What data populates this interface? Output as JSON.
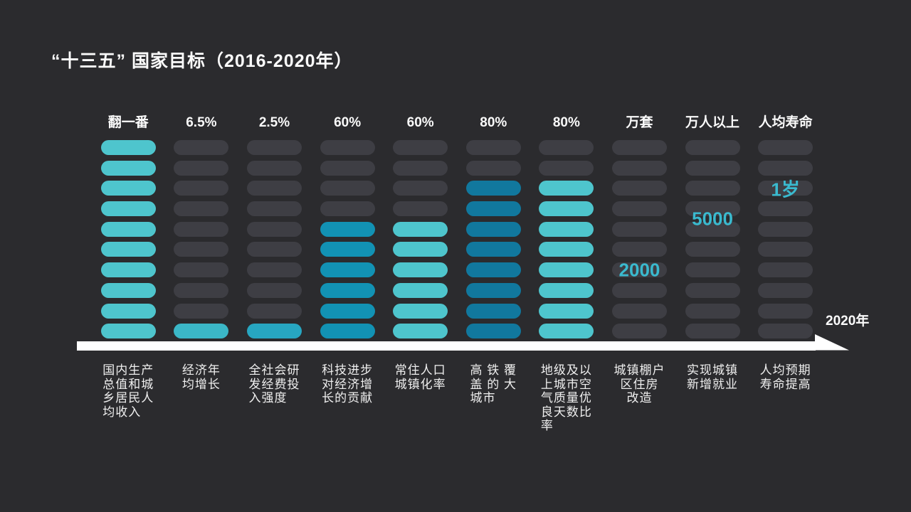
{
  "title": "“十三五” 国家目标（2016-2020年）",
  "axis": {
    "year_label": "2020年"
  },
  "pill_rows": 10,
  "colors": {
    "background": "#2B2B2E",
    "pill_empty": "#3E3E44",
    "arrow": "#FFFFFF",
    "accent_text": "#3ABACF",
    "light_teal": "#4EC5CD",
    "medium_teal": "#3BB7C7",
    "cyan_blue": "#27A6C1",
    "blue": "#1292B4",
    "deep_blue": "#11789E"
  },
  "columns": [
    {
      "header": "翻一番",
      "filled": 10,
      "fill_color": "#4EC5CD",
      "label": "国内生产\n总值和城\n乡居民人\n均收入",
      "align": "left"
    },
    {
      "header": "6.5%",
      "filled": 1,
      "fill_color": "#3BB7C7",
      "label": "经济年\n均增长",
      "align": "left"
    },
    {
      "header": "2.5%",
      "filled": 1,
      "fill_color": "#27A6C1",
      "label": "全社会研\n发经费投\n入强度",
      "align": "left"
    },
    {
      "header": "60%",
      "filled": 6,
      "fill_color": "#1292B4",
      "label": "科技进步\n对经济增\n长的贡献",
      "align": "left"
    },
    {
      "header": "60%",
      "filled": 6,
      "fill_color": "#4EC5CD",
      "label": "常住人口\n城镇化率",
      "align": "left"
    },
    {
      "header": "80%",
      "filled": 8,
      "fill_color": "#11789E",
      "label": "高 铁 覆\n盖 的 大\n城市",
      "align": "left"
    },
    {
      "header": "80%",
      "filled": 8,
      "fill_color": "#4EC5CD",
      "label": "地级及以\n上城市空\n气质量优\n良天数比\n率",
      "align": "left"
    },
    {
      "header": "万套",
      "filled": 0,
      "fill_color": null,
      "label": "城镇棚户\n区住房\n改造",
      "align": "center",
      "overlay": {
        "text": "2000",
        "row": 7
      }
    },
    {
      "header": "万人以上",
      "filled": 0,
      "fill_color": null,
      "label": "实现城镇\n新增就业",
      "align": "left",
      "overlay": {
        "text": "5000",
        "row": 4.5
      }
    },
    {
      "header": "人均寿命",
      "filled": 0,
      "fill_color": null,
      "label": "人均预期\n寿命提高",
      "align": "left",
      "overlay": {
        "text": "1岁",
        "row": 3
      }
    }
  ],
  "chart_data": {
    "type": "bar",
    "title": "“十三五” 国家目标（2016-2020年）",
    "categories": [
      "国内生产总值和城乡居民人均收入",
      "经济年均增长",
      "全社会研发经费投入强度",
      "科技进步对经济增长的贡献",
      "常住人口城镇化率",
      "高铁覆盖的大城市",
      "地级及以上城市空气质量优良天数比率",
      "城镇棚户区住房改造",
      "实现城镇新增就业",
      "人均预期寿命提高"
    ],
    "targets": [
      "翻一番",
      "6.5%",
      "2.5%",
      "60%",
      "60%",
      "80%",
      "80%",
      "2000万套",
      "5000万人以上",
      "提高1岁"
    ],
    "series": [
      {
        "name": "filled-pill-segments-of-10",
        "values": [
          10,
          1,
          1,
          6,
          6,
          8,
          8,
          0,
          0,
          0
        ]
      }
    ],
    "annotations": [
      "2000",
      "5000",
      "1岁"
    ],
    "xlabel": "2020年",
    "ylabel": "",
    "ylim": [
      0,
      10
    ],
    "grid": false,
    "legend_position": "none"
  }
}
